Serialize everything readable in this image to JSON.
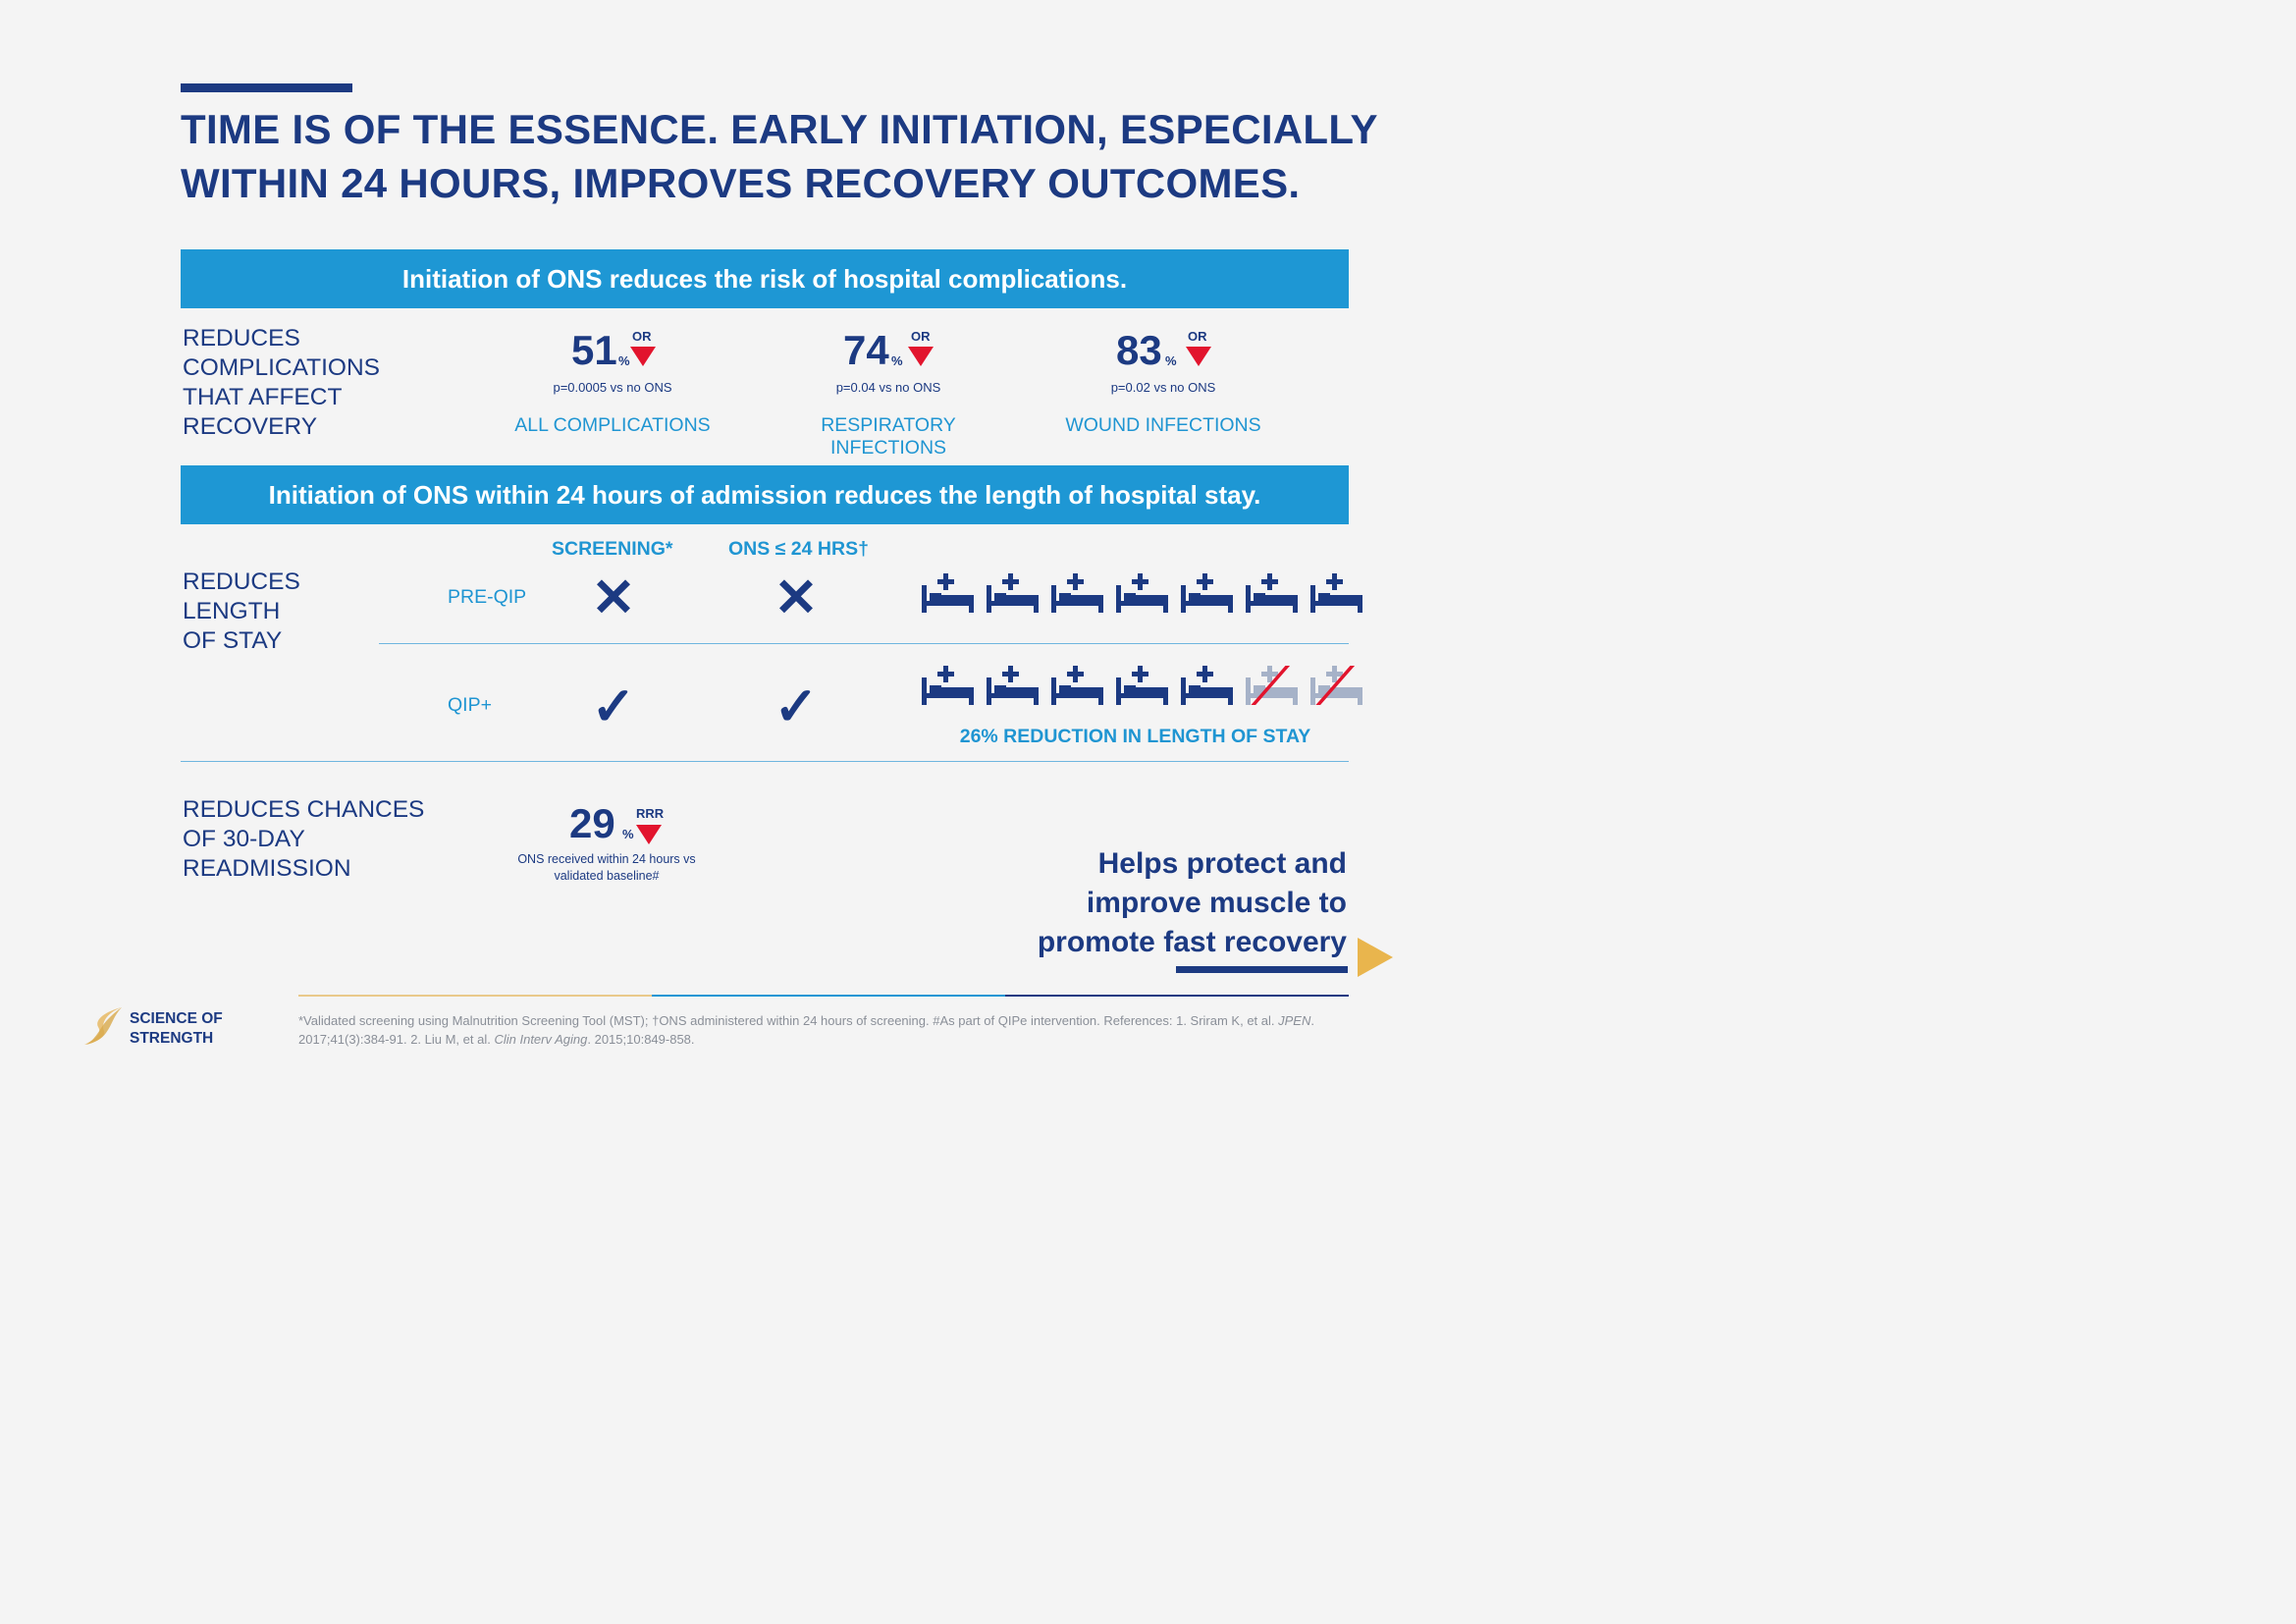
{
  "headline": [
    "TIME IS OF THE ESSENCE. EARLY INITIATION, ESPECIALLY",
    "WITHIN 24 HOURS, IMPROVES RECOVERY OUTCOMES."
  ],
  "band1": "Initiation of ONS reduces the risk of hospital complications.",
  "band2": "Initiation of ONS within 24 hours of admission reduces the length of hospital stay.",
  "section1": {
    "label": [
      "REDUCES",
      "COMPLICATIONS",
      "THAT AFFECT",
      "RECOVERY"
    ],
    "stats": [
      {
        "value": "51",
        "unit": "%",
        "measure": "OR",
        "pval": "p=0.0005 vs no ONS",
        "category": "ALL COMPLICATIONS"
      },
      {
        "value": "74",
        "unit": "%",
        "measure": "OR",
        "pval": "p=0.04 vs no ONS",
        "category": "RESPIRATORY INFECTIONS"
      },
      {
        "value": "83",
        "unit": "%",
        "measure": "OR",
        "pval": "p=0.02 vs no ONS",
        "category": "WOUND INFECTIONS"
      }
    ]
  },
  "section2": {
    "label": [
      "REDUCES",
      "LENGTH",
      "OF STAY"
    ],
    "col_screening": "SCREENING*",
    "col_ons": "ONS ≤ 24 HRS†",
    "row_pre": "PRE-QIP",
    "row_qip": "QIP+",
    "pre_screening": "✕",
    "pre_ons": "✕",
    "qip_screening": "✓",
    "qip_ons": "✓",
    "pre_beds_total": 7,
    "qip_beds_active": 5,
    "qip_beds_removed": 2,
    "reduction_caption": "26% REDUCTION IN LENGTH OF STAY"
  },
  "section3": {
    "label": [
      "REDUCES CHANCES",
      "OF 30-DAY",
      "READMISSION"
    ],
    "value": "29",
    "unit": "%",
    "measure": "RRR",
    "note": [
      "ONS received within 24 hours vs",
      "validated baseline#"
    ]
  },
  "cta": {
    "line1": "Helps protect and",
    "line2": "improve muscle to",
    "line3_pre": "promote ",
    "line3_emph": "fast",
    "line3_post": " recovery"
  },
  "logo": [
    "SCIENCE OF",
    "STRENGTH"
  ],
  "footnote": {
    "p1": "*Validated screening using Malnutrition Screening Tool (MST); †ONS administered within 24 hours of screening. #As part of QIPe intervention. References: 1. Sriram K, et al. ",
    "j1": "JPEN",
    "p2": ". 2017;41(3):384-91. 2. Liu M, et al. ",
    "j2": "Clin Interv Aging",
    "p3": ". 2015;10:849-858."
  },
  "colors": {
    "navy": "#1c3a82",
    "blue": "#1e97d4",
    "red": "#e2142d",
    "gold": "#e9b54d",
    "grey_bed": "#a6b2c8"
  }
}
